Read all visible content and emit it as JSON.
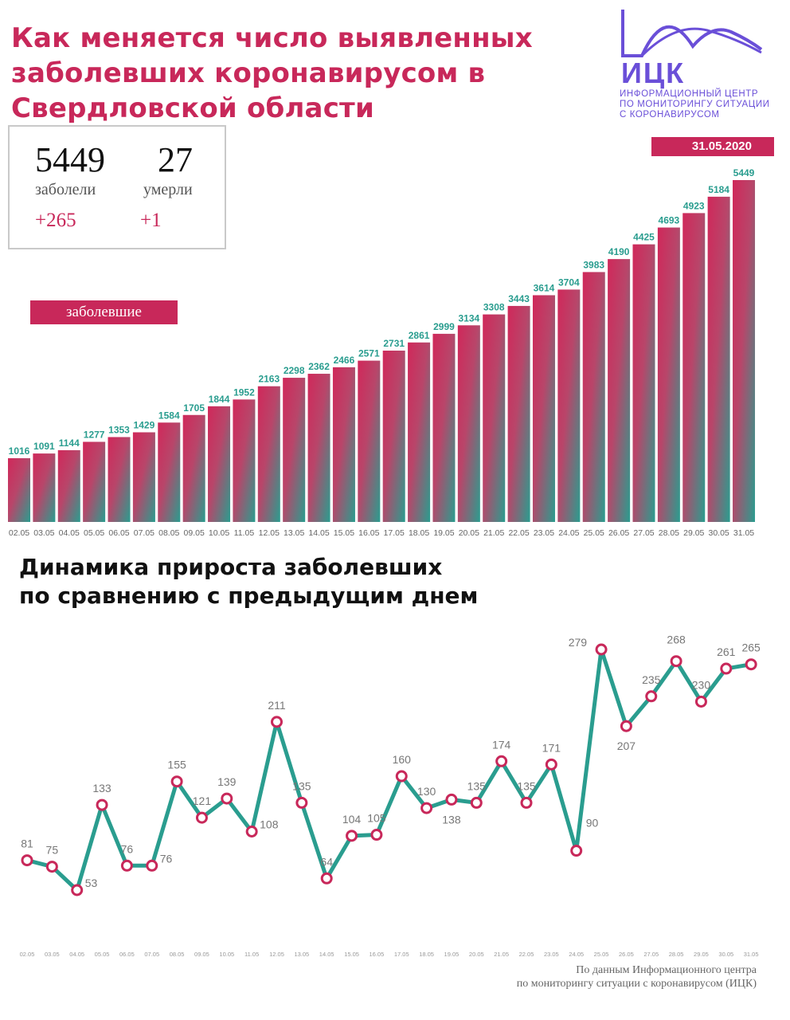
{
  "header": {
    "title_lines": [
      "Как меняется число выявленных",
      "заболевших коронавирусом в",
      "Свердловской области"
    ]
  },
  "stats": {
    "cases": "5449",
    "cases_label": "заболели",
    "cases_delta": "+265",
    "deaths": "27",
    "deaths_label": "умерли",
    "deaths_delta": "+1"
  },
  "logo": {
    "abbr": "ИЦК",
    "text_lines": [
      "ИНФОРМАЦИОННЫЙ ЦЕНТР",
      "ПО МОНИТОРИНГУ СИТУАЦИИ",
      "С КОРОНАВИРУСОМ"
    ]
  },
  "date": "31.05.2020",
  "series_label": "заболевшие",
  "subtitle_lines": [
    "Динамика прироста заболевших",
    "по сравнению с предыдущим днем"
  ],
  "footer_lines": [
    "По данным Информационного центра",
    "по мониторингу ситуации с коронавирусом (ИЦК)"
  ],
  "colors": {
    "accent": "#c8285a",
    "teal": "#2a9d8f",
    "label_gray": "#777777",
    "logo": "#6a4fd8"
  },
  "chart_data": [
    {
      "type": "bar",
      "title": "",
      "categories": [
        "02.05",
        "03.05",
        "04.05",
        "05.05",
        "06.05",
        "07.05",
        "08.05",
        "09.05",
        "10.05",
        "11.05",
        "12.05",
        "13.05",
        "14.05",
        "15.05",
        "16.05",
        "17.05",
        "18.05",
        "19.05",
        "20.05",
        "21.05",
        "22.05",
        "23.05",
        "24.05",
        "25.05",
        "26.05",
        "27.05",
        "28.05",
        "29.05",
        "30.05",
        "31.05"
      ],
      "values": [
        1016,
        1091,
        1144,
        1277,
        1353,
        1429,
        1584,
        1705,
        1844,
        1952,
        2163,
        2298,
        2362,
        2466,
        2571,
        2731,
        2861,
        2999,
        3134,
        3308,
        3443,
        3614,
        3704,
        3983,
        4190,
        4425,
        4693,
        4923,
        5184,
        5449
      ],
      "series": [
        {
          "name": "заболевшие"
        }
      ],
      "ylim": [
        0,
        5449
      ],
      "grid": false
    },
    {
      "type": "line",
      "title": "Динамика прироста заболевших по сравнению с предыдущим днем",
      "categories": [
        "02.05",
        "03.05",
        "04.05",
        "05.05",
        "06.05",
        "07.05",
        "08.05",
        "09.05",
        "10.05",
        "11.05",
        "12.05",
        "13.05",
        "14.05",
        "15.05",
        "16.05",
        "17.05",
        "18.05",
        "19.05",
        "20.05",
        "21.05",
        "22.05",
        "23.05",
        "24.05",
        "25.05",
        "26.05",
        "27.05",
        "28.05",
        "29.05",
        "30.05",
        "31.05"
      ],
      "values": [
        81,
        75,
        53,
        133,
        76,
        76,
        155,
        121,
        139,
        108,
        211,
        135,
        64,
        104,
        105,
        160,
        130,
        138,
        135,
        174,
        135,
        171,
        90,
        279,
        207,
        235,
        268,
        230,
        261,
        265
      ],
      "grid": false
    }
  ]
}
